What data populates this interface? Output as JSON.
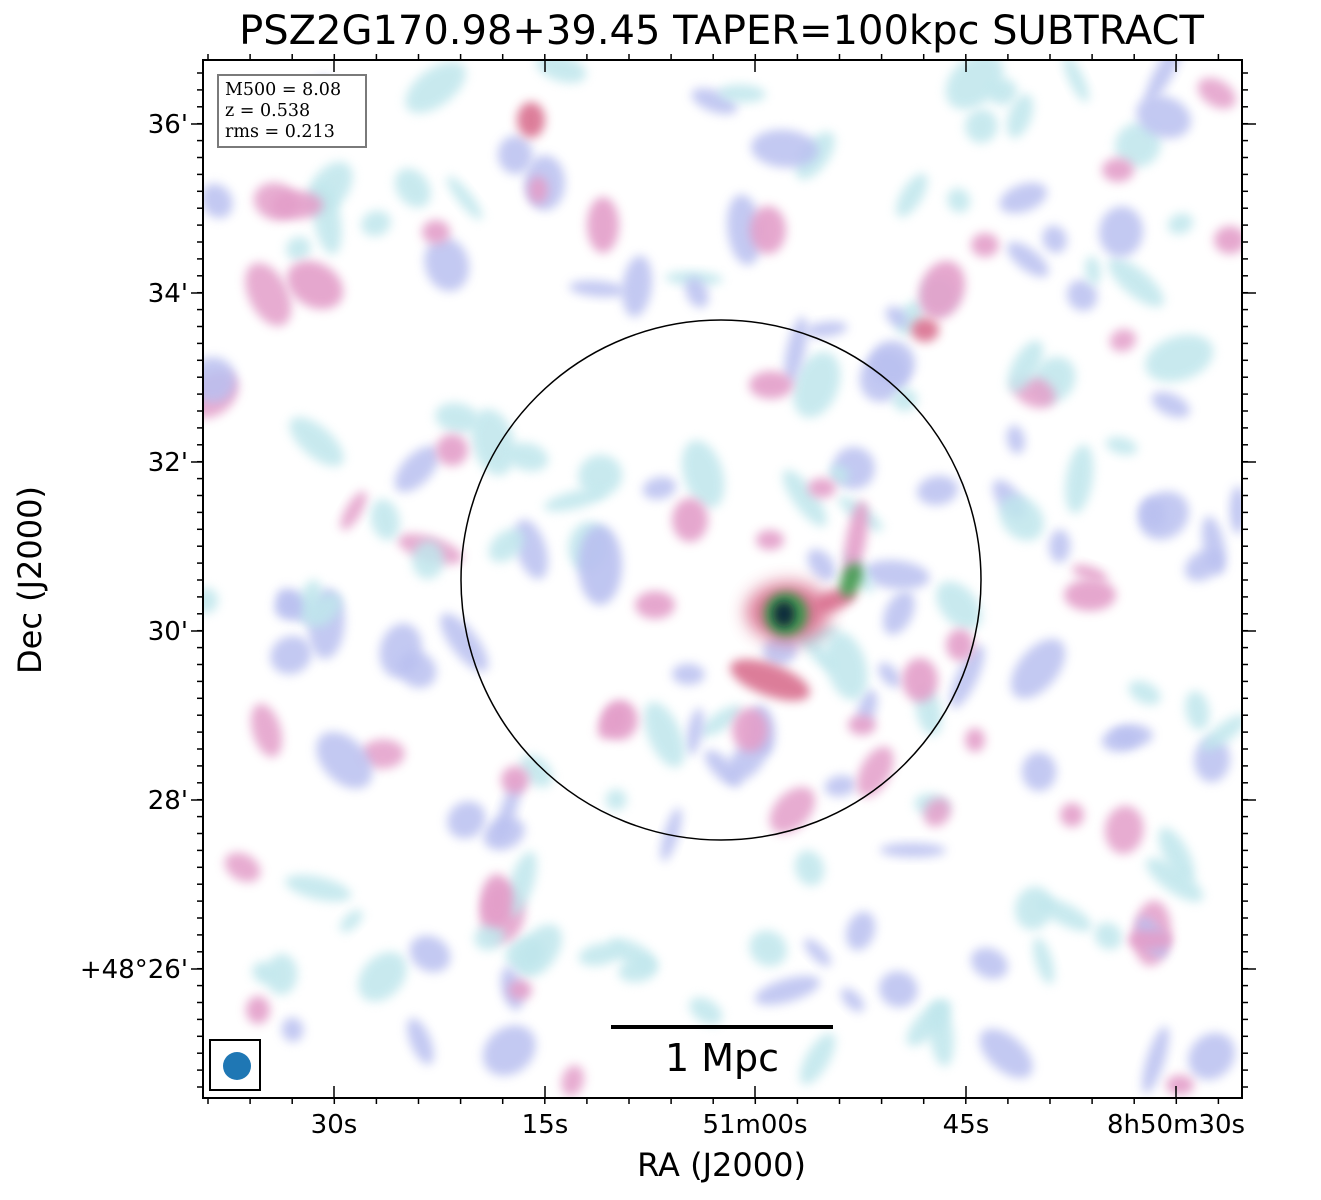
{
  "chart_data": {
    "type": "heatmap",
    "title": "PSZ2G170.98+39.45 TAPER=100kpc SUBTRACT",
    "xlabel": "RA (J2000)",
    "ylabel": "Dec (J2000)",
    "x_ticks": [
      {
        "label": "30s",
        "ra_sec_offset": 30
      },
      {
        "label": "15s",
        "ra_sec_offset": 15
      },
      {
        "label": "51m00s",
        "ra_sec_offset": 0
      },
      {
        "label": "45s",
        "ra_sec_offset": -15
      },
      {
        "label": "8h50m30s",
        "ra_sec_offset": -30
      }
    ],
    "y_ticks": [
      {
        "label": "36'",
        "dec_arcmin": 36
      },
      {
        "label": "34'",
        "dec_arcmin": 34
      },
      {
        "label": "32'",
        "dec_arcmin": 32
      },
      {
        "label": "30'",
        "dec_arcmin": 30
      },
      {
        "label": "28'",
        "dec_arcmin": 28
      },
      {
        "label": "+48°26'",
        "dec_arcmin": 26
      }
    ],
    "info_box": [
      "M500 = 8.08",
      "z = 0.538",
      "rms = 0.213"
    ],
    "scale_bar": {
      "label": "1 Mpc"
    },
    "colors": {
      "faint": "#bfe6ec",
      "low": "#b9c0f0",
      "mid": "#e39ec9",
      "high": "#d9708f",
      "peak_edge": "#3f9a4e",
      "peak_core": "#0a2b3a",
      "beam": "#1f77b4",
      "circle": "#000000"
    }
  }
}
